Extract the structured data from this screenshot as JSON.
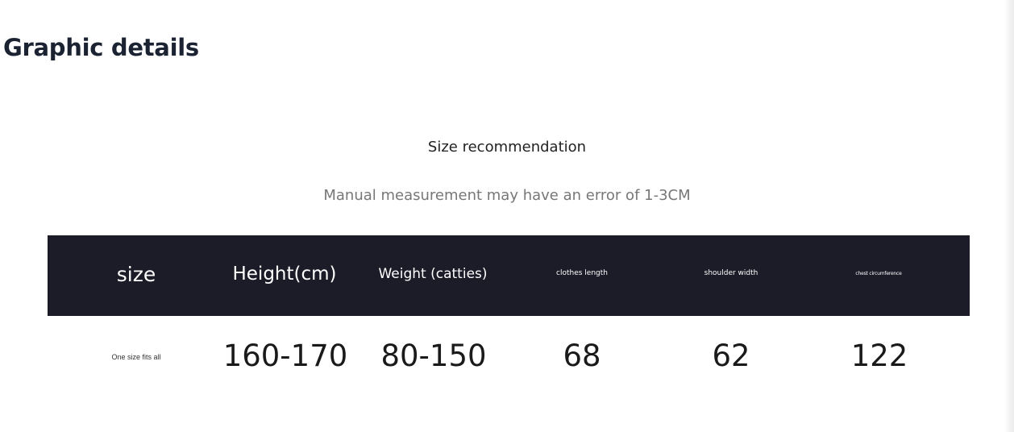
{
  "section": {
    "title": "Graphic details"
  },
  "size_chart": {
    "title": "Size recommendation",
    "subtitle": "Manual measurement may have an error of 1-3CM",
    "headers": [
      "size",
      "Height(cm)",
      "Weight (catties)",
      "clothes length",
      "shoulder width",
      "chest circumference"
    ],
    "row": [
      "One size fits all",
      "160-170",
      "80-150",
      "68",
      "62",
      "122"
    ],
    "colors": {
      "header_background": "#1c1b28",
      "header_text": "#ffffff",
      "body_text": "#1a1a1a"
    }
  }
}
